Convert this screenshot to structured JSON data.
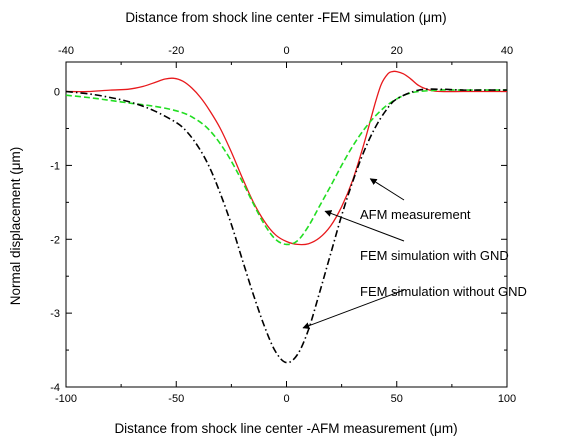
{
  "chart_data": {
    "type": "line",
    "top_axis": {
      "label": "Distance from shock line center -FEM simulation (μm)",
      "range": [
        -40,
        40
      ],
      "ticks": [
        -40,
        -20,
        0,
        20,
        40
      ]
    },
    "bottom_axis": {
      "label": "Distance from shock line center -AFM measurement (μm)",
      "range": [
        -100,
        100
      ],
      "ticks": [
        -100,
        -50,
        0,
        50,
        100
      ]
    },
    "y_axis": {
      "label": "Normal displacement (μm)",
      "range": [
        -4,
        0.4
      ],
      "ticks": [
        0,
        -1,
        -2,
        -3,
        -4
      ]
    },
    "grid": false,
    "series": [
      {
        "name": "AFM measurement",
        "axis": "bottom",
        "color": "#e8191c",
        "style": "solid",
        "x": [
          -100,
          -90,
          -80,
          -72,
          -65,
          -60,
          -55,
          -51,
          -47,
          -43,
          -39,
          -35,
          -30,
          -25,
          -20,
          -15,
          -10,
          -5,
          0,
          5,
          10,
          15,
          20,
          25,
          30,
          35,
          40,
          43,
          46,
          48,
          50,
          53,
          56,
          60,
          65,
          70,
          80,
          90,
          100
        ],
        "y": [
          0.0,
          0.0,
          0.02,
          0.03,
          0.07,
          0.12,
          0.17,
          0.18,
          0.14,
          0.05,
          -0.08,
          -0.25,
          -0.5,
          -0.82,
          -1.17,
          -1.5,
          -1.76,
          -1.94,
          -2.03,
          -2.07,
          -2.06,
          -1.98,
          -1.82,
          -1.56,
          -1.2,
          -0.72,
          -0.18,
          0.1,
          0.24,
          0.27,
          0.27,
          0.24,
          0.18,
          0.08,
          0.02,
          0.0,
          0.0,
          0.0,
          0.0
        ]
      },
      {
        "name": "FEM simulation with GND",
        "axis": "top",
        "color": "#22dd22",
        "style": "dashed",
        "x": [
          -40,
          -36,
          -32,
          -28,
          -24,
          -20,
          -17,
          -14,
          -11,
          -8,
          -6,
          -4,
          -2,
          0,
          2,
          4,
          6,
          8,
          10,
          12,
          14,
          16,
          18,
          20,
          22,
          24,
          28,
          32,
          36,
          40
        ],
        "y": [
          -0.05,
          -0.08,
          -0.12,
          -0.16,
          -0.2,
          -0.26,
          -0.35,
          -0.52,
          -0.82,
          -1.22,
          -1.52,
          -1.8,
          -2.0,
          -2.07,
          -2.02,
          -1.82,
          -1.55,
          -1.28,
          -1.0,
          -0.74,
          -0.52,
          -0.34,
          -0.2,
          -0.1,
          -0.03,
          0.0,
          0.02,
          0.02,
          0.02,
          0.02
        ]
      },
      {
        "name": "FEM simulation without GND",
        "axis": "top",
        "color": "#000000",
        "style": "dashdot",
        "x": [
          -40,
          -36,
          -32,
          -28,
          -24,
          -20,
          -18,
          -16,
          -14,
          -12,
          -10,
          -8,
          -6,
          -4,
          -2,
          0,
          2,
          4,
          6,
          8,
          10,
          12,
          14,
          16,
          18,
          20,
          24,
          28,
          32,
          36,
          40
        ],
        "y": [
          0.0,
          -0.03,
          -0.08,
          -0.15,
          -0.26,
          -0.42,
          -0.55,
          -0.75,
          -1.02,
          -1.38,
          -1.8,
          -2.28,
          -2.75,
          -3.18,
          -3.52,
          -3.67,
          -3.56,
          -3.22,
          -2.72,
          -2.2,
          -1.68,
          -1.22,
          -0.82,
          -0.5,
          -0.26,
          -0.1,
          0.02,
          0.03,
          0.02,
          0.02,
          0.02
        ]
      }
    ],
    "annotations": [
      {
        "text": "AFM measurement",
        "target_series": 0,
        "point": [
          38,
          -1.18
        ]
      },
      {
        "text": "FEM simulation with GND",
        "target_series": 1,
        "point": [
          7,
          -1.62
        ]
      },
      {
        "text": "FEM simulation without GND",
        "target_series": 2,
        "point": [
          3,
          -3.2
        ]
      }
    ]
  }
}
